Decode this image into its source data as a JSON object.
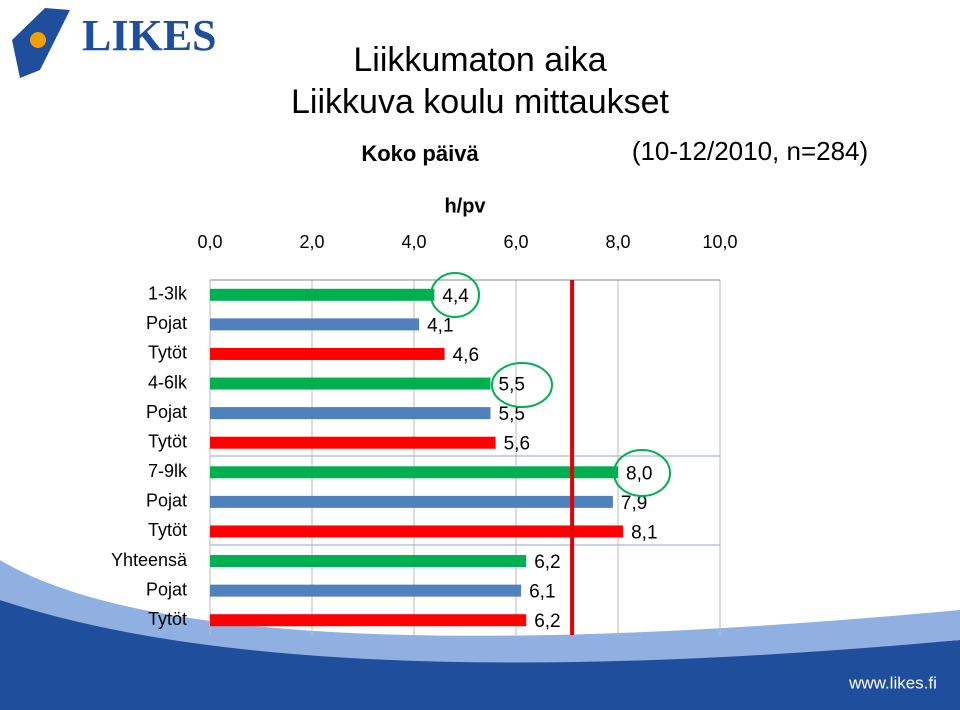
{
  "logo": "LIKES",
  "footer": "www.likes.fi",
  "chart_data": {
    "type": "hbar",
    "title": "Liikkumaton aika",
    "subtitle": "Liikkuva koulu mittaukset",
    "label": "Koko päivä",
    "note": "(10-12/2010, n=284)",
    "x_label": "h/pv",
    "categories": [
      "1-3lk",
      "Pojat",
      "Tytöt",
      "4-6lk",
      "Pojat",
      "Tytöt",
      "7-9lk",
      "Pojat",
      "Tytöt",
      "Yhteensä",
      "Pojat",
      "Tytöt"
    ],
    "values": [
      4.4,
      4.1,
      4.6,
      5.5,
      5.5,
      5.6,
      8.0,
      7.9,
      8.1,
      6.2,
      6.1,
      6.2
    ],
    "value_labels": [
      "4,4",
      "4,1",
      "4,6",
      "5,5",
      "5,5",
      "5,6",
      "8,0",
      "7,9",
      "8,1",
      "6,2",
      "6,1",
      "6,2"
    ],
    "colors": [
      "#00b050",
      "#4f81bd",
      "#ff0000",
      "#00b050",
      "#4f81bd",
      "#ff0000",
      "#00b050",
      "#4f81bd",
      "#ff0000",
      "#00b050",
      "#4f81bd",
      "#ff0000"
    ],
    "xlim": [
      0,
      10
    ],
    "xticks": [
      {
        "value": 0,
        "label": "0,0"
      },
      {
        "value": 2,
        "label": "2,0"
      },
      {
        "value": 4,
        "label": "4,0"
      },
      {
        "value": 6,
        "label": "6,0"
      },
      {
        "value": 8,
        "label": "8,0"
      },
      {
        "value": 10,
        "label": "10,0"
      }
    ],
    "grid": true,
    "reference_line": {
      "value": 7.1,
      "color": "#e00000"
    }
  }
}
